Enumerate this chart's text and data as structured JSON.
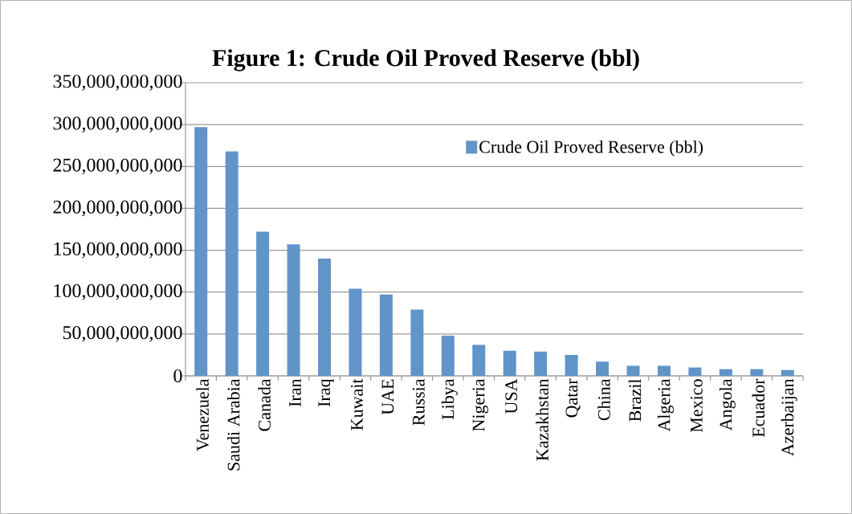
{
  "chart_data": {
    "type": "bar",
    "title": "Figure 1: Crude Oil Proved Reserve (bbl)",
    "categories": [
      "Venezuela",
      "Saudi Arabia",
      "Canada",
      "Iran",
      "Iraq",
      "Kuwait",
      "UAE",
      "Russia",
      "Libya",
      "Nigeria",
      "USA",
      "Kazakhstan",
      "Qatar",
      "China",
      "Brazil",
      "Algeria",
      "Mexico",
      "Angola",
      "Ecuador",
      "Azerbaijan"
    ],
    "series": [
      {
        "name": "Crude Oil Proved Reserve (bbl)",
        "color": "#6194c8",
        "values": [
          297000000000,
          268000000000,
          172000000000,
          157000000000,
          140000000000,
          104000000000,
          97000000000,
          79000000000,
          48000000000,
          37000000000,
          30000000000,
          29000000000,
          25000000000,
          17000000000,
          12000000000,
          12000000000,
          10000000000,
          8000000000,
          8000000000,
          7000000000
        ]
      }
    ],
    "ylim": [
      0,
      350000000000
    ],
    "yticks": [
      0,
      {
        "value": 50000000000,
        "label": "50,000,000,000"
      },
      {
        "value": 100000000000,
        "label": "100,000,000,000"
      },
      {
        "value": 150000000000,
        "label": "150,000,000,000"
      },
      {
        "value": 200000000000,
        "label": "200,000,000,000"
      },
      {
        "value": 250000000000,
        "label": "250,000,000,000"
      },
      {
        "value": 300000000000,
        "label": "300,000,000,000"
      },
      {
        "value": 350000000000,
        "label": "350,000,000,000"
      }
    ],
    "grid": "y",
    "legend": "top right"
  }
}
